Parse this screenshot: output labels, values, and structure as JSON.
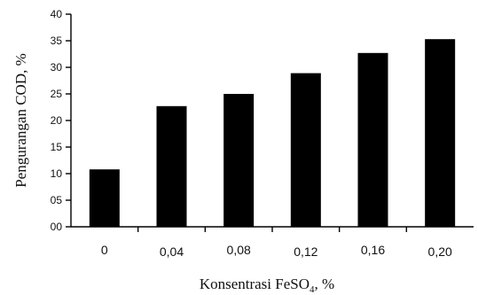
{
  "chart_data": {
    "type": "bar",
    "categories": [
      "0",
      "0,04",
      "0,08",
      "0,12",
      "0,16",
      "0,20"
    ],
    "values": [
      10.8,
      22.7,
      25.0,
      28.9,
      32.7,
      35.3
    ],
    "ylim": [
      0,
      40
    ],
    "yticks": [
      "00",
      "05",
      "10",
      "15",
      "20",
      "25",
      "30",
      "35",
      "40"
    ],
    "ylabel": "Pengurangan COD, %",
    "xlabel": {
      "prefix": "Konsentrasi FeSO",
      "subscript": "4",
      "suffix": ", %"
    },
    "grid": false,
    "bar_color": "#000000"
  }
}
